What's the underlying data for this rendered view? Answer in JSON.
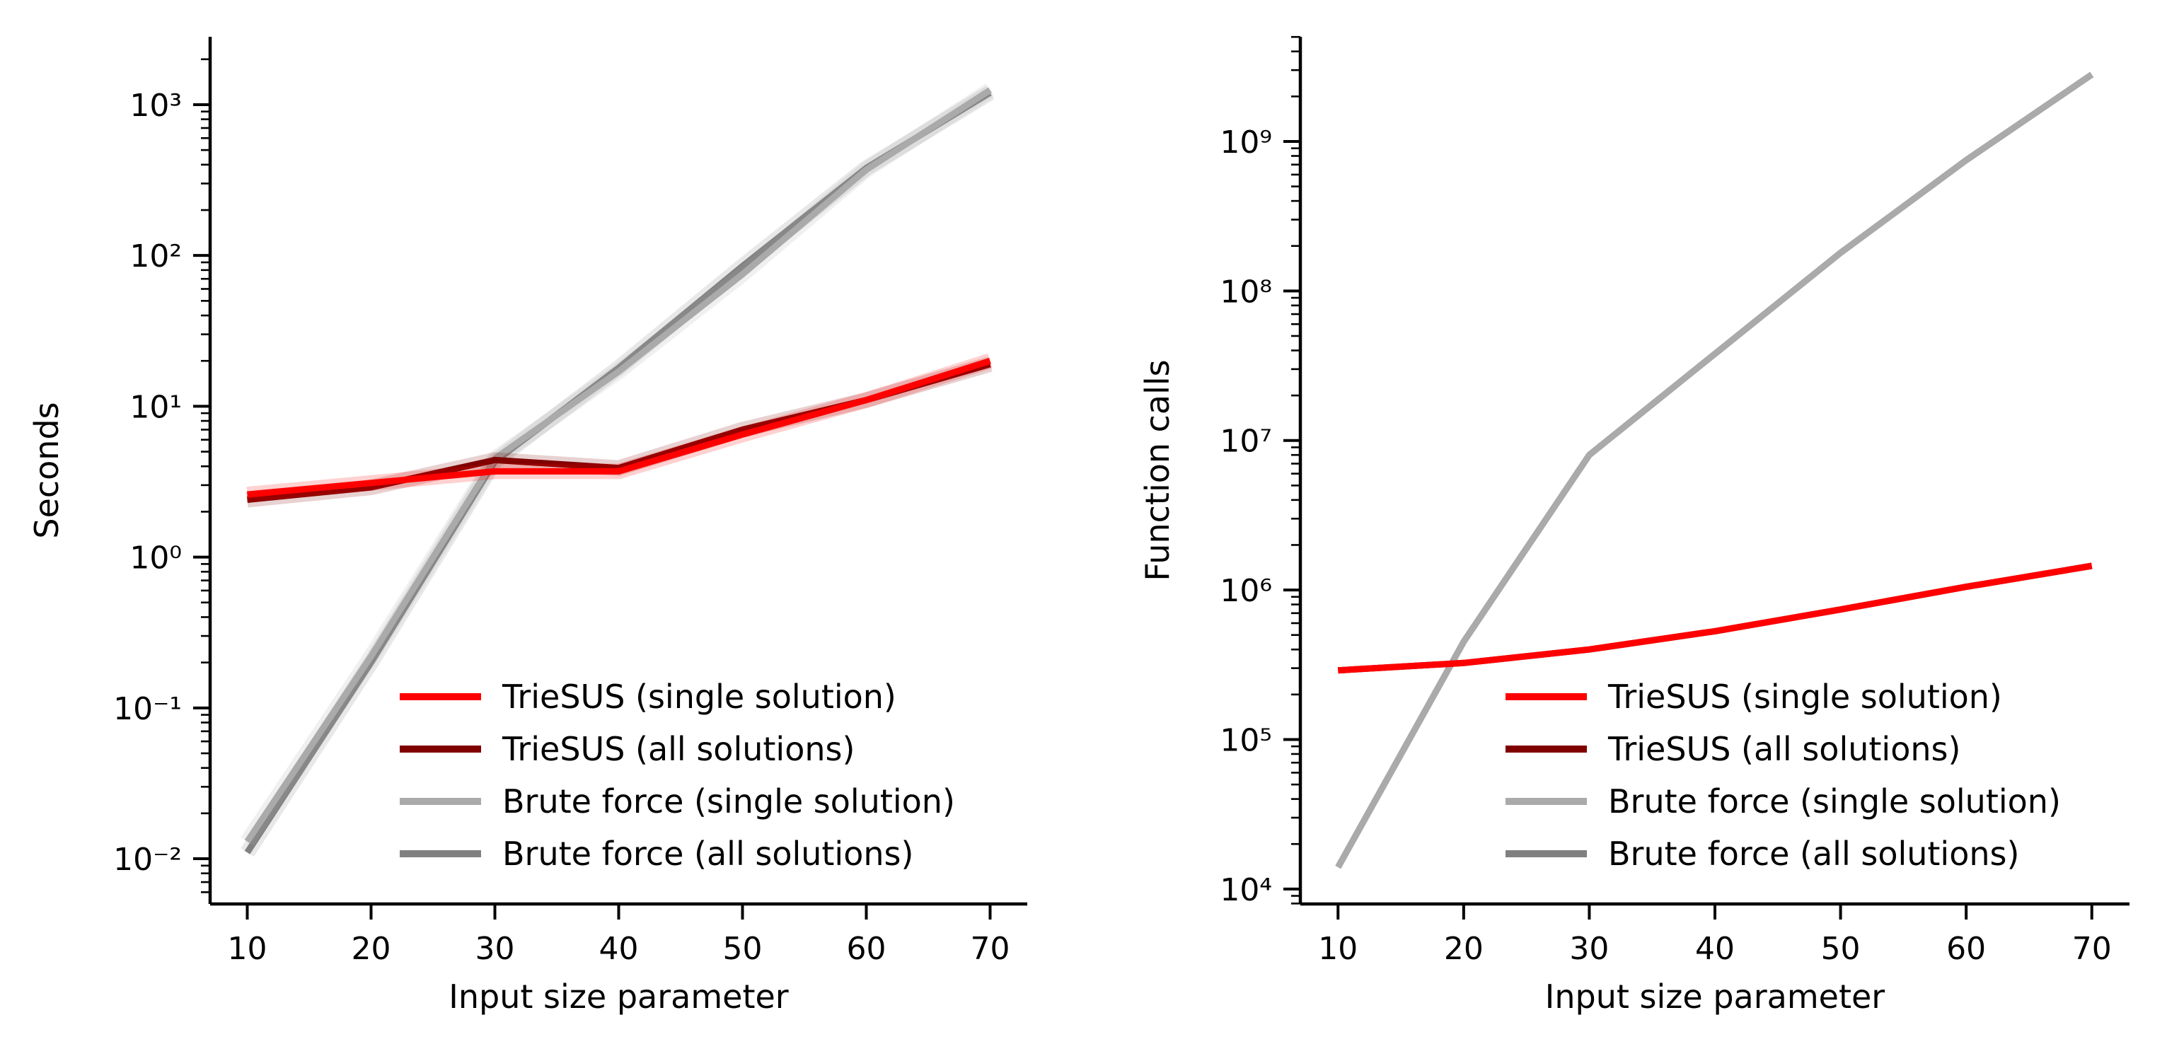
{
  "chart_data": [
    {
      "type": "line",
      "xlabel": "Input size parameter",
      "ylabel": "Seconds",
      "yscale": "log",
      "x_ticks": [
        10,
        20,
        30,
        40,
        50,
        60,
        70
      ],
      "y_ticks": [
        -2,
        -1,
        0,
        1,
        2,
        3
      ],
      "xlim": [
        7,
        73
      ],
      "ylim_log10": [
        -2.3,
        3.45
      ],
      "legend_position": "lower-right",
      "series": [
        {
          "name": "TrieSUS (single solution)",
          "color": "#ff0000",
          "x": [
            10,
            20,
            30,
            40,
            50,
            60,
            70
          ],
          "y": [
            2.6,
            3.1,
            3.7,
            3.7,
            6.5,
            11,
            20
          ]
        },
        {
          "name": "TrieSUS (all solutions)",
          "color": "#800000",
          "x": [
            10,
            20,
            30,
            40,
            50,
            60,
            70
          ],
          "y": [
            2.4,
            2.9,
            4.4,
            3.9,
            7,
            11,
            19
          ]
        },
        {
          "name": "Brute force (single solution)",
          "color": "#aaaaaa",
          "x": [
            10,
            20,
            30,
            40,
            50,
            60,
            70
          ],
          "y": [
            0.013,
            0.22,
            4.5,
            17,
            75,
            370,
            1250
          ]
        },
        {
          "name": "Brute force (all solutions)",
          "color": "#808080",
          "x": [
            10,
            20,
            30,
            40,
            50,
            60,
            70
          ],
          "y": [
            0.011,
            0.2,
            4.3,
            18,
            85,
            380,
            1200
          ]
        }
      ]
    },
    {
      "type": "line",
      "xlabel": "Input size parameter",
      "ylabel": "Function calls",
      "yscale": "log",
      "x_ticks": [
        10,
        20,
        30,
        40,
        50,
        60,
        70
      ],
      "y_ticks": [
        4,
        5,
        6,
        7,
        8,
        9
      ],
      "xlim": [
        7,
        73
      ],
      "ylim_log10": [
        3.9,
        9.7
      ],
      "legend_position": "lower-right",
      "series": [
        {
          "name": "TrieSUS (single solution)",
          "color": "#ff0000",
          "x": [
            10,
            20,
            30,
            40,
            50,
            60,
            70
          ],
          "y": [
            290000,
            325000,
            400000,
            530000,
            740000,
            1050000,
            1450000
          ]
        },
        {
          "name": "TrieSUS (all solutions)",
          "color": "#800000",
          "x": [
            10,
            20,
            30,
            40,
            50,
            60,
            70
          ],
          "y": [
            290000,
            325000,
            400000,
            530000,
            740000,
            1050000,
            1450000
          ]
        },
        {
          "name": "Brute force (single solution)",
          "color": "#aaaaaa",
          "x": [
            10,
            20,
            30,
            40,
            50,
            60,
            70
          ],
          "y": [
            14000,
            450000,
            8000000,
            38000000,
            180000000,
            750000000,
            2800000000
          ]
        },
        {
          "name": "Brute force (all solutions)",
          "color": "#808080",
          "x": [
            10,
            20,
            30,
            40,
            50,
            60,
            70
          ],
          "y": [
            14000,
            450000,
            8000000,
            38000000,
            180000000,
            750000000,
            2800000000
          ]
        }
      ]
    }
  ]
}
